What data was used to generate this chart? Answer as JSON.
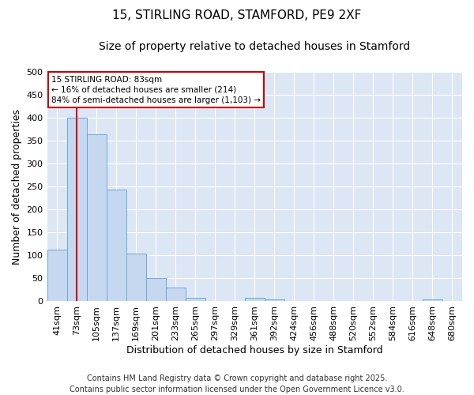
{
  "title_line1": "15, STIRLING ROAD, STAMFORD, PE9 2XF",
  "title_line2": "Size of property relative to detached houses in Stamford",
  "xlabel": "Distribution of detached houses by size in Stamford",
  "ylabel": "Number of detached properties",
  "categories": [
    "41sqm",
    "73sqm",
    "105sqm",
    "137sqm",
    "169sqm",
    "201sqm",
    "233sqm",
    "265sqm",
    "297sqm",
    "329sqm",
    "361sqm",
    "392sqm",
    "424sqm",
    "456sqm",
    "488sqm",
    "520sqm",
    "552sqm",
    "584sqm",
    "616sqm",
    "648sqm",
    "680sqm"
  ],
  "values": [
    112,
    400,
    365,
    243,
    105,
    50,
    30,
    8,
    0,
    0,
    8,
    5,
    0,
    0,
    0,
    0,
    0,
    0,
    0,
    5,
    0
  ],
  "bar_color": "#c5d8f0",
  "bar_edge_color": "#6eaad4",
  "plot_bg_color": "#dce6f5",
  "fig_bg_color": "#ffffff",
  "grid_color": "#ffffff",
  "vline_x": 1,
  "vline_color": "#cc0000",
  "annotation_text": "15 STIRLING ROAD: 83sqm\n← 16% of detached houses are smaller (214)\n84% of semi-detached houses are larger (1,103) →",
  "annotation_box_color": "#cc0000",
  "ylim": [
    0,
    500
  ],
  "yticks": [
    0,
    50,
    100,
    150,
    200,
    250,
    300,
    350,
    400,
    450,
    500
  ],
  "footer": "Contains HM Land Registry data © Crown copyright and database right 2025.\nContains public sector information licensed under the Open Government Licence v3.0.",
  "title_fontsize": 11,
  "subtitle_fontsize": 10,
  "axis_label_fontsize": 9,
  "tick_fontsize": 8,
  "footer_fontsize": 7
}
